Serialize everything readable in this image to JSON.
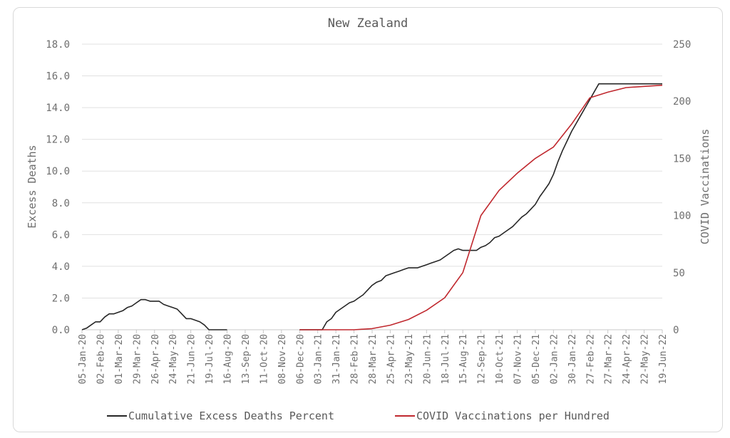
{
  "chart_data": {
    "type": "line",
    "title": "New Zealand",
    "ylabel": "Excess Deaths",
    "y2label": "COVID Vaccinations",
    "ylim": [
      0,
      18
    ],
    "y2lim": [
      0,
      250
    ],
    "grid": true,
    "legend_position": "bottom",
    "y_ticks": [
      "0.0",
      "2.0",
      "4.0",
      "6.0",
      "8.0",
      "10.0",
      "12.0",
      "14.0",
      "16.0",
      "18.0"
    ],
    "y2_ticks": [
      "0",
      "50",
      "100",
      "150",
      "200",
      "250"
    ],
    "x_ticks": [
      "05-Jan-20",
      "02-Feb-20",
      "01-Mar-20",
      "29-Mar-20",
      "26-Apr-20",
      "24-May-20",
      "21-Jun-20",
      "19-Jul-20",
      "16-Aug-20",
      "13-Sep-20",
      "11-Oct-20",
      "08-Nov-20",
      "06-Dec-20",
      "03-Jan-21",
      "31-Jan-21",
      "28-Feb-21",
      "28-Mar-21",
      "25-Apr-21",
      "23-May-21",
      "20-Jun-21",
      "18-Jul-21",
      "15-Aug-21",
      "12-Sep-21",
      "10-Oct-21",
      "07-Nov-21",
      "05-Dec-21",
      "02-Jan-22",
      "30-Jan-22",
      "27-Feb-22",
      "27-Mar-22",
      "24-Apr-22",
      "22-May-22",
      "19-Jun-22"
    ],
    "series": [
      {
        "name": "Cumulative Excess Deaths Percent",
        "color": "#262626",
        "axis": "left",
        "segments": [
          {
            "x": [
              "05-Jan-20",
              "12-Jan-20",
              "19-Jan-20",
              "26-Jan-20",
              "02-Feb-20",
              "09-Feb-20",
              "16-Feb-20",
              "23-Feb-20",
              "01-Mar-20",
              "08-Mar-20",
              "15-Mar-20",
              "22-Mar-20",
              "29-Mar-20",
              "05-Apr-20",
              "12-Apr-20",
              "19-Apr-20",
              "26-Apr-20",
              "03-May-20",
              "10-May-20",
              "17-May-20",
              "24-May-20",
              "31-May-20",
              "07-Jun-20",
              "14-Jun-20",
              "21-Jun-20",
              "28-Jun-20",
              "05-Jul-20",
              "12-Jul-20",
              "19-Jul-20",
              "26-Jul-20",
              "02-Aug-20",
              "09-Aug-20",
              "16-Aug-20"
            ],
            "values": [
              0.0,
              0.1,
              0.3,
              0.5,
              0.5,
              0.8,
              1.0,
              1.0,
              1.1,
              1.2,
              1.4,
              1.5,
              1.7,
              1.9,
              1.9,
              1.8,
              1.8,
              1.8,
              1.6,
              1.5,
              1.4,
              1.3,
              1.0,
              0.7,
              0.7,
              0.6,
              0.5,
              0.3,
              0.0,
              0.0,
              0.0,
              0.0,
              0.0
            ]
          },
          {
            "x": [
              "06-Dec-20",
              "13-Dec-20",
              "20-Dec-20",
              "27-Dec-20",
              "03-Jan-21",
              "10-Jan-21",
              "17-Jan-21",
              "24-Jan-21",
              "31-Jan-21",
              "07-Feb-21",
              "14-Feb-21",
              "21-Feb-21",
              "28-Feb-21",
              "07-Mar-21",
              "14-Mar-21",
              "21-Mar-21",
              "28-Mar-21",
              "04-Apr-21",
              "11-Apr-21",
              "18-Apr-21",
              "25-Apr-21",
              "02-May-21",
              "09-May-21",
              "16-May-21",
              "23-May-21",
              "30-May-21",
              "06-Jun-21",
              "13-Jun-21",
              "20-Jun-21",
              "27-Jun-21",
              "04-Jul-21",
              "11-Jul-21",
              "18-Jul-21",
              "25-Jul-21",
              "01-Aug-21",
              "08-Aug-21",
              "15-Aug-21",
              "22-Aug-21",
              "29-Aug-21",
              "05-Sep-21",
              "12-Sep-21",
              "19-Sep-21",
              "26-Sep-21",
              "03-Oct-21",
              "10-Oct-21",
              "17-Oct-21",
              "24-Oct-21",
              "31-Oct-21",
              "07-Nov-21",
              "14-Nov-21",
              "21-Nov-21",
              "28-Nov-21",
              "05-Dec-21",
              "12-Dec-21",
              "19-Dec-21",
              "26-Dec-21",
              "02-Jan-22",
              "09-Jan-22",
              "16-Jan-22",
              "23-Jan-22",
              "30-Jan-22",
              "06-Feb-22",
              "13-Feb-22",
              "20-Feb-22",
              "27-Feb-22",
              "06-Mar-22",
              "13-Mar-22",
              "20-Mar-22",
              "27-Mar-22",
              "03-Apr-22",
              "10-Apr-22",
              "17-Apr-22",
              "24-Apr-22",
              "01-May-22",
              "08-May-22",
              "15-May-22",
              "22-May-22",
              "29-May-22",
              "05-Jun-22",
              "12-Jun-22",
              "19-Jun-22"
            ],
            "values": [
              0.0,
              0.0,
              0.0,
              0.0,
              0.0,
              0.0,
              0.5,
              0.7,
              1.1,
              1.3,
              1.5,
              1.7,
              1.8,
              2.0,
              2.2,
              2.5,
              2.8,
              3.0,
              3.1,
              3.4,
              3.5,
              3.6,
              3.7,
              3.8,
              3.9,
              3.9,
              3.9,
              4.0,
              4.1,
              4.2,
              4.3,
              4.4,
              4.6,
              4.8,
              5.0,
              5.1,
              5.0,
              5.0,
              5.0,
              5.0,
              5.2,
              5.3,
              5.5,
              5.8,
              5.9,
              6.1,
              6.3,
              6.5,
              6.8,
              7.1,
              7.3,
              7.6,
              7.9,
              8.4,
              8.8,
              9.2,
              9.8,
              10.6,
              11.3,
              11.9,
              12.5,
              13.0,
              13.5,
              14.0,
              14.5,
              15.0,
              15.5,
              15.5,
              15.5,
              15.5,
              15.5,
              15.5,
              15.5,
              15.5,
              15.5,
              15.5,
              15.5,
              15.5,
              15.5,
              15.5,
              15.5
            ]
          }
        ]
      },
      {
        "name": "COVID Vaccinations per Hundred",
        "color": "#c0282e",
        "axis": "right",
        "segments": [
          {
            "x": [
              "06-Dec-20",
              "03-Jan-21",
              "31-Jan-21",
              "28-Feb-21",
              "28-Mar-21",
              "25-Apr-21",
              "23-May-21",
              "20-Jun-21",
              "18-Jul-21",
              "15-Aug-21",
              "12-Sep-21",
              "10-Oct-21",
              "07-Nov-21",
              "05-Dec-21",
              "02-Jan-22",
              "30-Jan-22",
              "27-Feb-22",
              "27-Mar-22",
              "24-Apr-22",
              "22-May-22",
              "19-Jun-22"
            ],
            "values": [
              0,
              0,
              0,
              0,
              1,
              4,
              9,
              17,
              28,
              50,
              100,
              122,
              137,
              150,
              160,
              180,
              203,
              208,
              212,
              213,
              214
            ]
          }
        ]
      }
    ]
  }
}
